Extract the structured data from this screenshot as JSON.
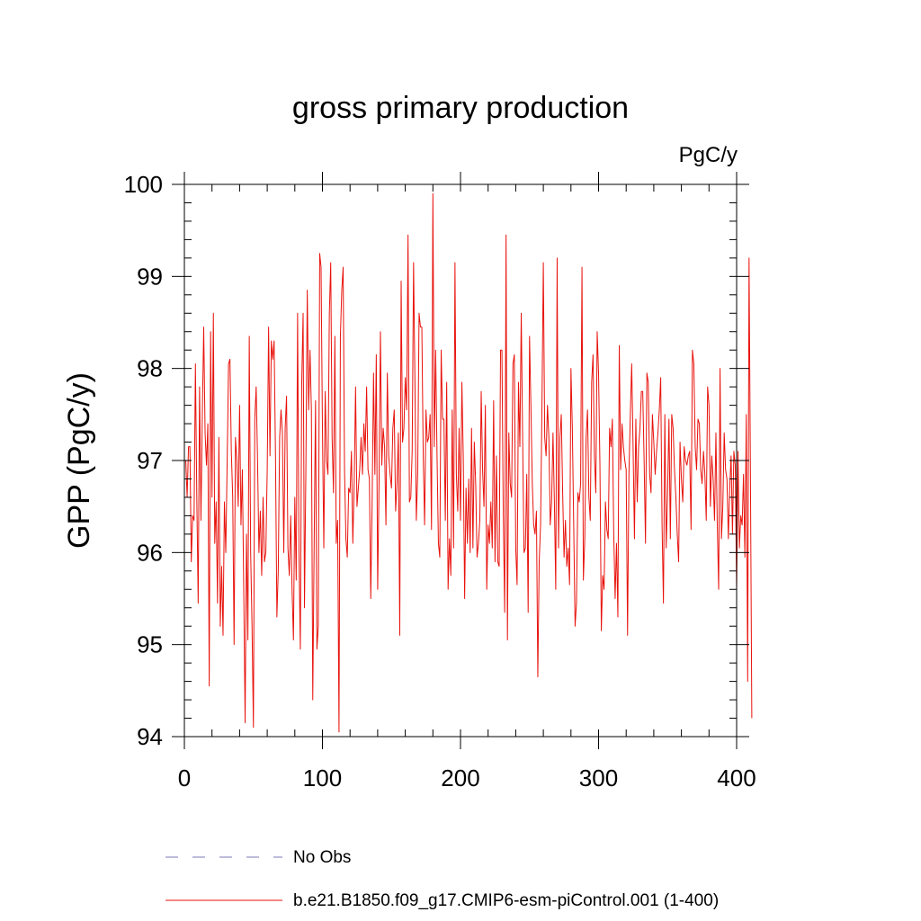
{
  "chart_data": {
    "type": "line",
    "title": "gross primary production",
    "units_label": "PgC/y",
    "xlabel": "",
    "ylabel": "GPP  (PgC/y)",
    "xlim": [
      0,
      400
    ],
    "ylim": [
      94,
      100
    ],
    "x_ticks": [
      0,
      100,
      200,
      300,
      400
    ],
    "y_ticks": [
      94,
      95,
      96,
      97,
      98,
      99,
      100
    ],
    "x_minor_step": 20,
    "y_minor_step": 0.2,
    "grid": false,
    "legend": "bottom",
    "legend_entries": [
      {
        "label": "No Obs",
        "style": "dashed",
        "color": "#7b78b8"
      },
      {
        "label": "b.e21.B1850.f09_g17.CMIP6-esm-piControl.001 (1-400)",
        "style": "solid",
        "color": "#e8120c"
      }
    ],
    "series": [
      {
        "name": "b.e21.B1850.f09_g17.CMIP6-esm-piControl.001 (1-400)",
        "color": "#e8120c",
        "x_start": 1,
        "x_step": 1,
        "values": [
          97.0,
          96.6,
          97.15,
          97.15,
          95.9,
          96.4,
          96.35,
          98.05,
          96.6,
          95.45,
          97.8,
          96.35,
          97.5,
          98.45,
          97.3,
          96.95,
          97.4,
          94.55,
          98.4,
          96.6,
          98.6,
          96.1,
          96.55,
          95.45,
          97.25,
          95.2,
          95.85,
          95.1,
          96.55,
          96.0,
          97.0,
          98.05,
          98.1,
          97.1,
          96.6,
          95.0,
          97.25,
          97.0,
          96.5,
          97.6,
          96.3,
          96.9,
          95.6,
          94.15,
          96.2,
          95.05,
          98.35,
          96.0,
          95.2,
          94.1,
          97.45,
          97.8,
          97.0,
          96.0,
          96.45,
          95.75,
          96.6,
          95.9,
          96.0,
          96.9,
          98.45,
          97.05,
          98.3,
          98.1,
          98.3,
          97.05,
          95.3,
          95.8,
          97.25,
          97.55,
          97.3,
          96.0,
          97.35,
          97.7,
          96.05,
          95.75,
          96.4,
          95.6,
          95.05,
          96.6,
          95.7,
          98.6,
          96.0,
          94.95,
          97.85,
          98.6,
          95.4,
          96.9,
          98.85,
          97.55,
          98.2,
          97.55,
          94.4,
          96.1,
          97.65,
          94.95,
          95.2,
          99.25,
          99.1,
          97.35,
          96.05,
          97.75,
          97.0,
          96.85,
          98.6,
          99.15,
          97.25,
          96.65,
          98.35,
          96.1,
          96.35,
          94.05,
          98.35,
          98.85,
          99.1,
          96.9,
          96.15,
          95.95,
          96.7,
          96.65,
          97.1,
          96.1,
          96.75,
          97.8,
          96.5,
          96.7,
          96.9,
          97.25,
          96.85,
          97.4,
          97.1,
          97.8,
          96.9,
          96.8,
          95.5,
          96.55,
          97.95,
          96.85,
          98.15,
          95.6,
          96.75,
          98.4,
          96.95,
          97.35,
          97.15,
          96.3,
          97.95,
          97.05,
          96.85,
          96.7,
          97.35,
          97.55,
          96.45,
          96.75,
          97.3,
          95.1,
          98.95,
          97.2,
          97.35,
          97.9,
          97.55,
          99.45,
          96.55,
          96.6,
          97.1,
          99.15,
          97.85,
          96.35,
          96.85,
          98.6,
          98.45,
          98.45,
          97.05,
          96.3,
          97.55,
          97.2,
          97.25,
          97.5,
          96.25,
          99.9,
          97.15,
          98.2,
          97.05,
          96.1,
          95.95,
          98.2,
          97.45,
          97.45,
          96.35,
          97.85,
          95.6,
          96.15,
          95.75,
          97.55,
          96.05,
          99.15,
          96.85,
          96.45,
          97.35,
          96.35,
          97.85,
          97.05,
          95.5,
          96.7,
          96.1,
          96.8,
          96.0,
          97.35,
          96.05,
          97.2,
          96.75,
          95.95,
          96.1,
          96.35,
          97.75,
          96.9,
          96.5,
          97.6,
          95.6,
          96.3,
          96.1,
          96.55,
          96.05,
          97.65,
          95.9,
          97.05,
          95.9,
          95.85,
          98.2,
          98.2,
          96.4,
          95.35,
          99.45,
          95.05,
          97.3,
          96.75,
          96.6,
          98.05,
          98.15,
          96.05,
          95.65,
          97.85,
          97.15,
          98.6,
          97.25,
          96.0,
          96.05,
          96.85,
          95.35,
          98.35,
          97.6,
          96.75,
          96.3,
          96.2,
          96.45,
          94.65,
          95.9,
          96.3,
          97.6,
          99.15,
          97.25,
          97.05,
          97.6,
          97.25,
          96.3,
          96.55,
          97.3,
          96.55,
          95.6,
          99.2,
          96.05,
          97.25,
          97.5,
          96.65,
          95.95,
          96.35,
          95.85,
          96.05,
          95.65,
          98.0,
          97.35,
          96.3,
          95.2,
          95.45,
          96.65,
          96.55,
          96.75,
          99.1,
          95.7,
          96.15,
          97.25,
          97.55,
          96.6,
          96.35,
          97.85,
          98.15,
          97.05,
          96.65,
          98.4,
          97.95,
          96.95,
          95.15,
          95.75,
          95.6,
          96.55,
          96.25,
          96.15,
          97.35,
          97.15,
          97.45,
          96.2,
          95.5,
          96.1,
          95.3,
          98.25,
          96.9,
          97.4,
          97.15,
          97.0,
          96.9,
          95.1,
          96.85,
          97.5,
          98.05,
          97.15,
          96.15,
          97.45,
          96.55,
          97.15,
          97.35,
          97.75,
          97.75,
          97.0,
          96.1,
          97.95,
          97.85,
          96.85,
          96.65,
          97.5,
          97.2,
          96.85,
          97.1,
          97.3,
          97.55,
          97.9,
          96.3,
          95.45,
          97.5,
          96.05,
          96.65,
          97.45,
          96.15,
          97.5,
          97.35,
          96.9,
          96.6,
          96.2,
          95.9,
          97.2,
          96.8,
          96.55,
          97.15,
          97.0,
          96.95,
          97.05,
          97.1,
          96.25,
          98.2,
          98.05,
          97.15,
          96.9,
          97.45,
          97.4,
          96.9,
          96.75,
          97.1,
          96.85,
          96.35,
          97.8,
          97.6,
          96.5,
          97.05,
          96.8,
          96.35,
          97.3,
          96.3,
          95.6,
          98.0,
          96.15,
          96.5,
          97.3,
          96.9,
          96.8,
          96.15,
          96.7,
          97.05,
          96.2,
          97.1,
          96.95,
          95.6,
          97.1,
          96.05,
          96.4,
          96.3,
          96.85,
          95.95,
          97.5,
          94.6,
          99.2,
          96.85,
          94.2
        ]
      }
    ]
  }
}
